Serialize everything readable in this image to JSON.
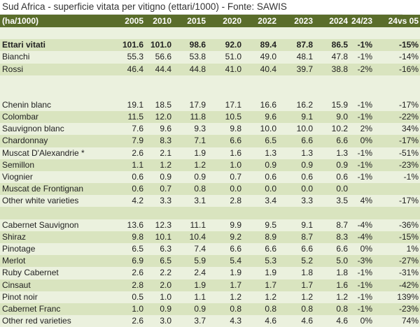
{
  "title": "Sud Africa - superficie vitata per vitigno (ettari/1000) - Fonte: SAWIS",
  "colors": {
    "header_bg": "#5a6d2b",
    "band_dark": "#d9e4bf",
    "band_light": "#ebf1de"
  },
  "columns": [
    "(ha/1000)",
    "2005",
    "2010",
    "2015",
    "2020",
    "2022",
    "2023",
    "2024",
    "24/23",
    "24vs 05"
  ],
  "rows": [
    {
      "blank": true
    },
    {
      "label": "Ettari vitati",
      "bold": true,
      "values": [
        "101.6",
        "101.0",
        "98.6",
        "92.0",
        "89.4",
        "87.8",
        "86.5",
        "-1%",
        "-15%"
      ]
    },
    {
      "label": "Bianchi",
      "values": [
        "55.3",
        "56.6",
        "53.8",
        "51.0",
        "49.0",
        "48.1",
        "47.8",
        "-1%",
        "-14%"
      ]
    },
    {
      "label": "Rossi",
      "values": [
        "46.4",
        "44.4",
        "44.8",
        "41.0",
        "40.4",
        "39.7",
        "38.8",
        "-2%",
        "-16%"
      ]
    },
    {
      "blank": true,
      "tall": true
    },
    {
      "label": "Chenin blanc",
      "values": [
        "19.1",
        "18.5",
        "17.9",
        "17.1",
        "16.6",
        "16.2",
        "15.9",
        "-1%",
        "-17%"
      ]
    },
    {
      "label": "Colombar",
      "values": [
        "11.5",
        "12.0",
        "11.8",
        "10.5",
        "9.6",
        "9.1",
        "9.0",
        "-1%",
        "-22%"
      ]
    },
    {
      "label": "Sauvignon blanc",
      "values": [
        "7.6",
        "9.6",
        "9.3",
        "9.8",
        "10.0",
        "10.0",
        "10.2",
        "2%",
        "34%"
      ]
    },
    {
      "label": "Chardonnay",
      "values": [
        "7.9",
        "8.3",
        "7.1",
        "6.6",
        "6.5",
        "6.6",
        "6.6",
        "0%",
        "-17%"
      ]
    },
    {
      "label": "Muscat D'Alexandrie *",
      "values": [
        "2.6",
        "2.1",
        "1.9",
        "1.6",
        "1.3",
        "1.3",
        "1.3",
        "-1%",
        "-51%"
      ]
    },
    {
      "label": "Semillon",
      "values": [
        "1.1",
        "1.2",
        "1.2",
        "1.0",
        "0.9",
        "0.9",
        "0.9",
        "-1%",
        "-23%"
      ]
    },
    {
      "label": "Viognier",
      "values": [
        "0.6",
        "0.9",
        "0.9",
        "0.7",
        "0.6",
        "0.6",
        "0.6",
        "-1%",
        "-1%"
      ]
    },
    {
      "label": "Muscat de Frontignan",
      "values": [
        "0.6",
        "0.7",
        "0.8",
        "0.0",
        "0.0",
        "0.0",
        "0.0",
        "",
        ""
      ]
    },
    {
      "label": "Other white varieties",
      "values": [
        "4.2",
        "3.3",
        "3.1",
        "2.8",
        "3.4",
        "3.3",
        "3.5",
        "4%",
        "-17%"
      ]
    },
    {
      "blank": true
    },
    {
      "label": "Cabernet Sauvignon",
      "values": [
        "13.6",
        "12.3",
        "11.1",
        "9.9",
        "9.5",
        "9.1",
        "8.7",
        "-4%",
        "-36%"
      ]
    },
    {
      "label": "Shiraz",
      "values": [
        "9.8",
        "10.1",
        "10.4",
        "9.2",
        "8.9",
        "8.7",
        "8.3",
        "-4%",
        "-15%"
      ]
    },
    {
      "label": "Pinotage",
      "values": [
        "6.5",
        "6.3",
        "7.4",
        "6.6",
        "6.6",
        "6.6",
        "6.6",
        "0%",
        "1%"
      ]
    },
    {
      "label": "Merlot",
      "values": [
        "6.9",
        "6.5",
        "5.9",
        "5.4",
        "5.3",
        "5.2",
        "5.0",
        "-3%",
        "-27%"
      ]
    },
    {
      "label": "Ruby Cabernet",
      "values": [
        "2.6",
        "2.2",
        "2.4",
        "1.9",
        "1.9",
        "1.8",
        "1.8",
        "-1%",
        "-31%"
      ]
    },
    {
      "label": "Cinsaut",
      "values": [
        "2.8",
        "2.0",
        "1.9",
        "1.7",
        "1.7",
        "1.7",
        "1.6",
        "-1%",
        "-42%"
      ]
    },
    {
      "label": "Pinot noir",
      "values": [
        "0.5",
        "1.0",
        "1.1",
        "1.2",
        "1.2",
        "1.2",
        "1.2",
        "-1%",
        "139%"
      ]
    },
    {
      "label": "Cabernet Franc",
      "values": [
        "1.0",
        "0.9",
        "0.9",
        "0.8",
        "0.8",
        "0.8",
        "0.8",
        "-1%",
        "-23%"
      ]
    },
    {
      "label": "Other red varieties",
      "values": [
        "2.6",
        "3.0",
        "3.7",
        "4.3",
        "4.6",
        "4.6",
        "4.6",
        "0%",
        "74%"
      ]
    }
  ]
}
